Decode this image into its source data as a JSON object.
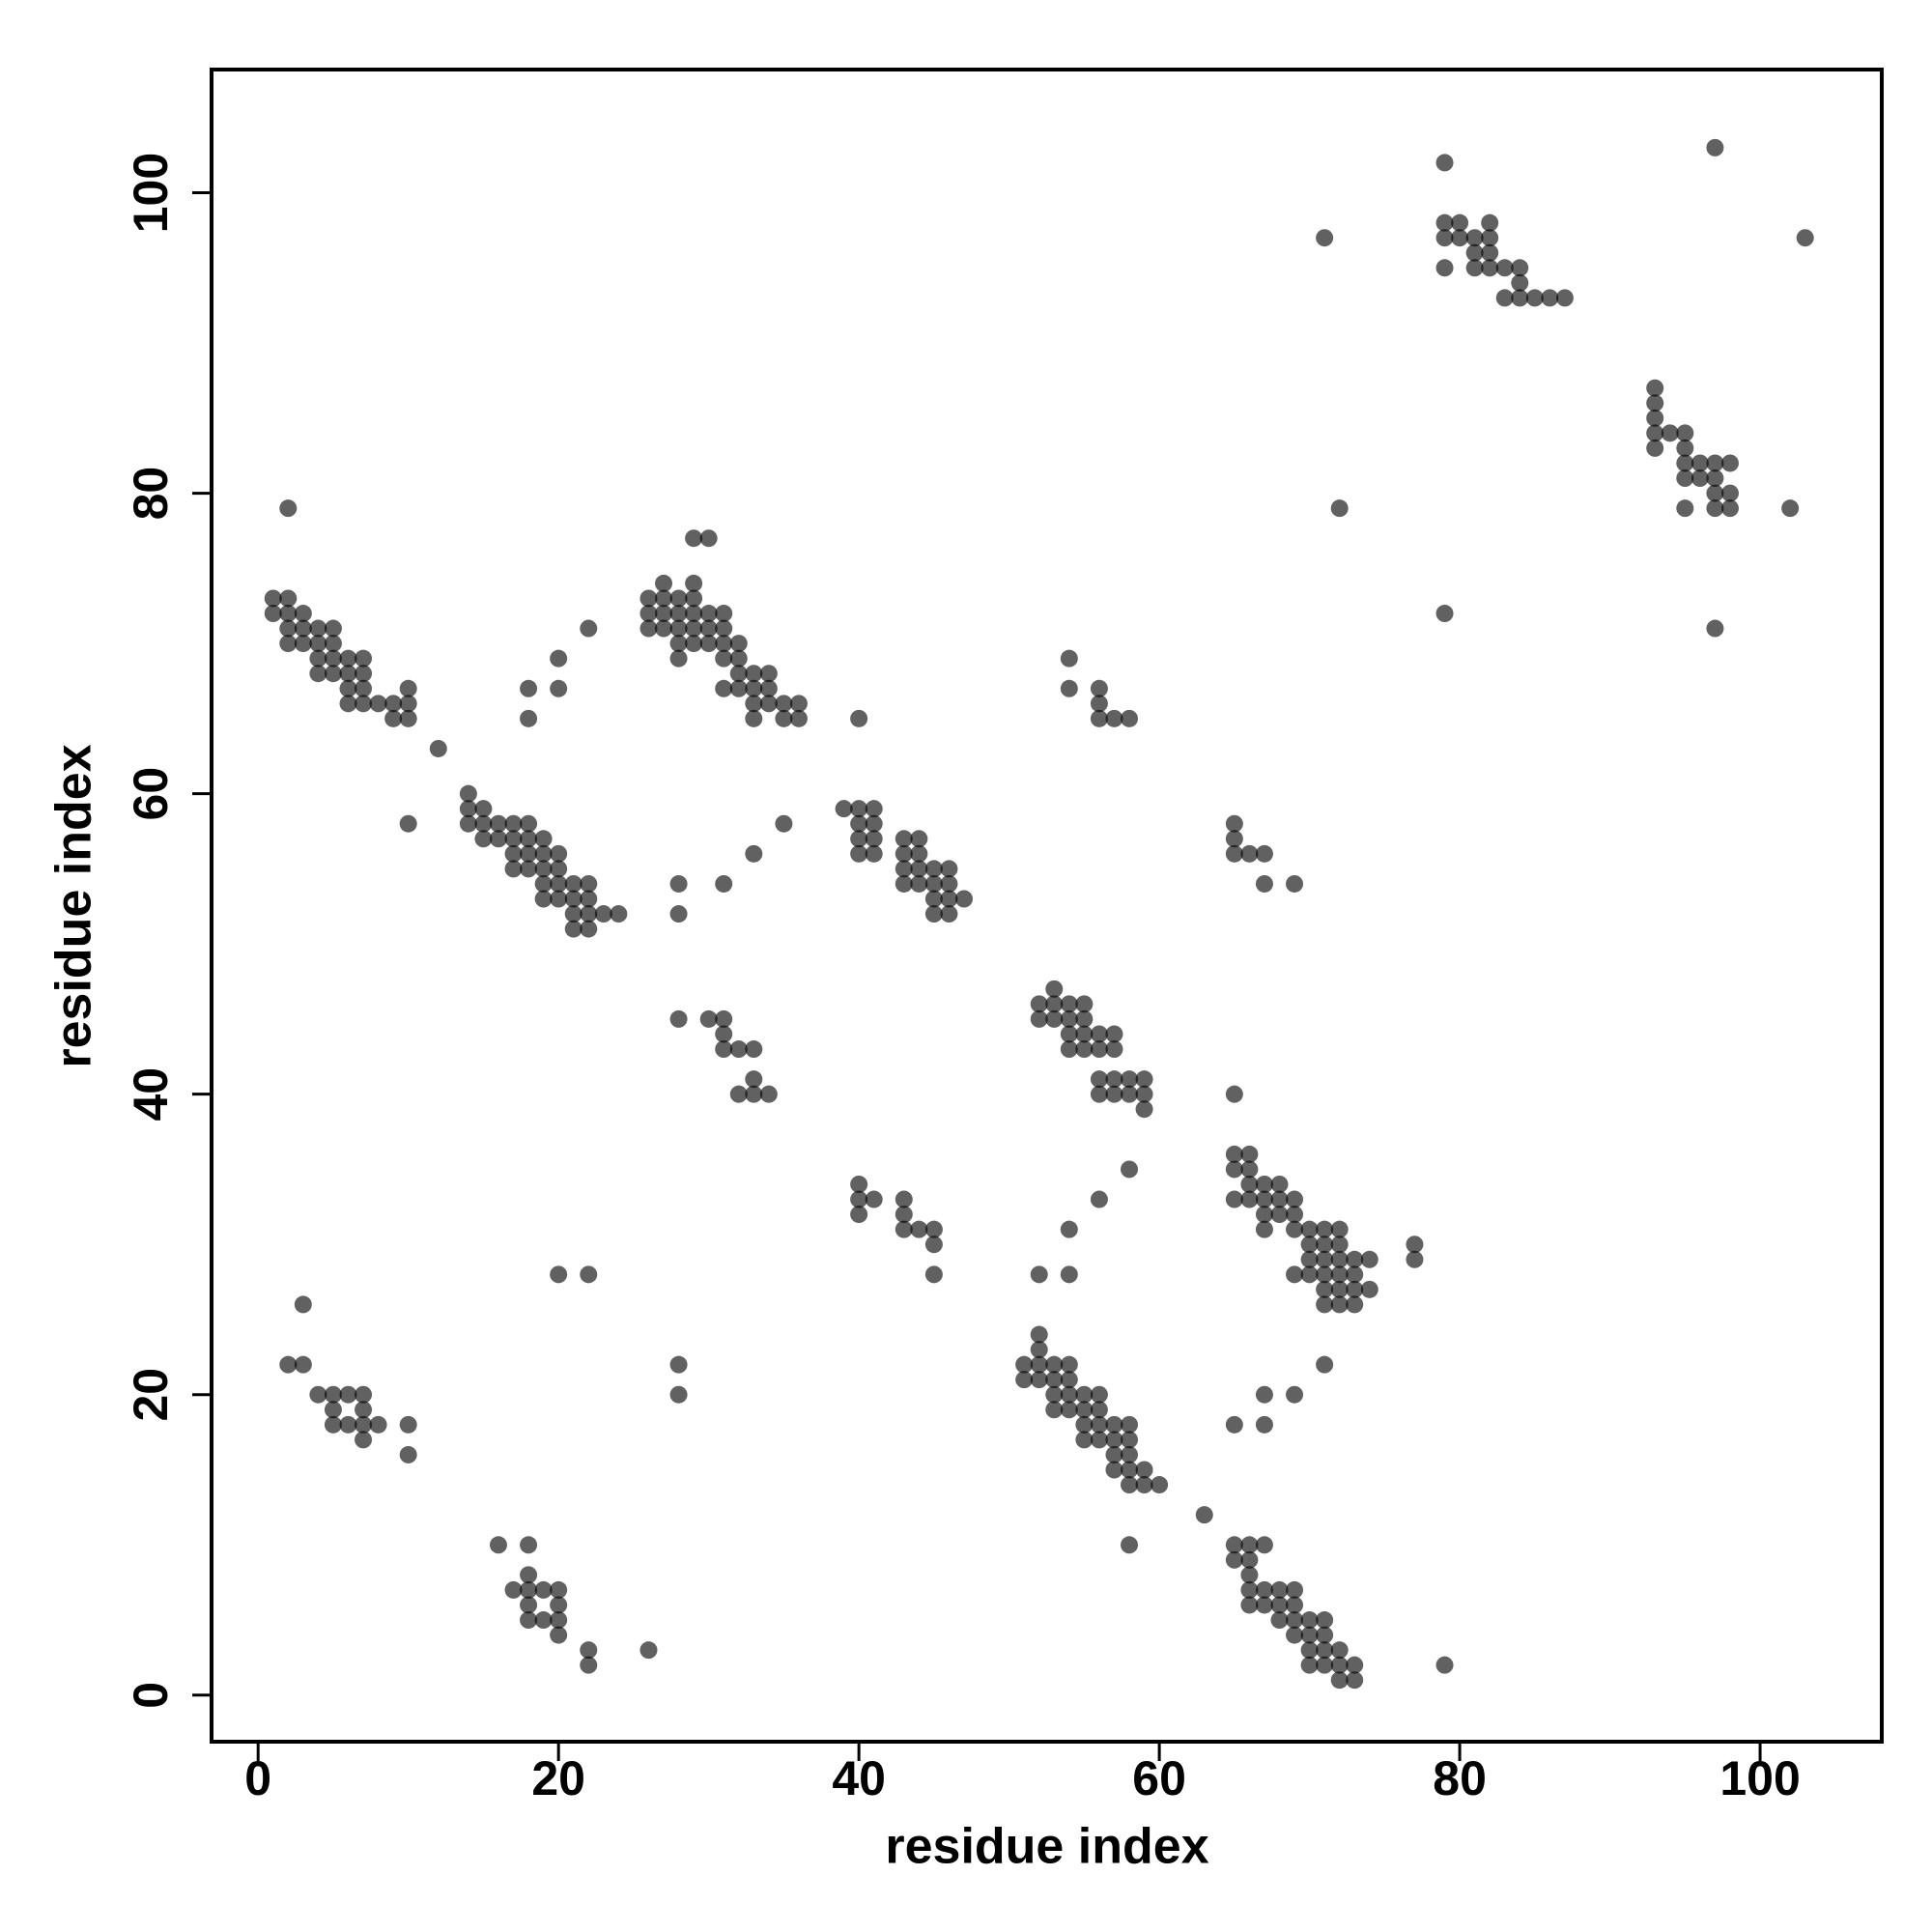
{
  "chart_data": {
    "type": "scatter",
    "xlabel": "residue index",
    "ylabel": "residue index",
    "xlim": [
      -3.1,
      108.1
    ],
    "ylim": [
      -3.1,
      108.2
    ],
    "xticks": [
      0,
      20,
      40,
      60,
      80,
      100
    ],
    "yticks": [
      0,
      20,
      40,
      60,
      80,
      100
    ],
    "color": "#000000",
    "alpha": 0.62,
    "x": [
      1,
      1,
      2,
      2,
      2,
      2,
      3,
      3,
      3,
      4,
      4,
      4,
      4,
      5,
      5,
      5,
      5,
      6,
      6,
      6,
      6,
      7,
      7,
      7,
      7,
      8,
      9,
      9,
      10,
      10,
      10,
      2,
      12,
      10,
      14,
      14,
      14,
      15,
      15,
      15,
      16,
      16,
      17,
      17,
      17,
      17,
      18,
      18,
      18,
      18,
      19,
      19,
      19,
      19,
      19,
      20,
      20,
      20,
      20,
      21,
      21,
      21,
      21,
      22,
      22,
      22,
      22,
      23,
      24,
      18,
      18,
      20,
      20,
      22,
      28,
      28,
      31,
      33,
      35,
      40,
      26,
      26,
      26,
      27,
      27,
      27,
      27,
      28,
      28,
      28,
      28,
      28,
      29,
      29,
      29,
      29,
      29,
      29,
      30,
      30,
      30,
      30,
      31,
      31,
      31,
      31,
      31,
      32,
      32,
      32,
      32,
      33,
      33,
      33,
      33,
      34,
      34,
      34,
      35,
      35,
      36,
      36,
      39,
      40,
      40,
      40,
      40,
      41,
      41,
      41,
      41,
      43,
      43,
      43,
      43,
      44,
      44,
      44,
      44,
      45,
      45,
      45,
      45,
      46,
      46,
      46,
      46,
      47,
      28,
      30,
      31,
      31,
      31,
      32,
      33,
      32,
      33,
      33,
      34,
      40,
      40,
      40,
      41,
      43,
      43,
      43,
      44,
      45,
      45,
      45,
      20,
      22,
      28,
      28,
      2,
      3,
      3,
      4,
      5,
      5,
      5,
      6,
      6,
      7,
      7,
      7,
      7,
      8,
      10,
      10,
      16,
      17,
      18,
      18,
      18,
      18,
      18,
      19,
      19,
      20,
      20,
      20,
      20,
      22,
      22,
      26,
      51,
      51,
      52,
      52,
      52,
      52,
      53,
      53,
      53,
      53,
      54,
      54,
      54,
      54,
      55,
      55,
      55,
      55,
      56,
      56,
      56,
      56,
      57,
      57,
      57,
      57,
      58,
      58,
      58,
      58,
      58,
      59,
      59,
      60,
      63,
      58,
      52,
      52,
      53,
      53,
      53,
      54,
      54,
      54,
      54,
      55,
      55,
      55,
      55,
      56,
      56,
      56,
      56,
      57,
      57,
      57,
      57,
      58,
      58,
      59,
      59,
      59,
      54,
      54,
      56,
      56,
      56,
      57,
      58,
      65,
      65,
      65,
      66,
      67,
      67,
      69,
      52,
      54,
      54,
      56,
      58,
      65,
      65,
      65,
      65,
      66,
      66,
      66,
      66,
      67,
      67,
      67,
      67,
      68,
      68,
      68,
      69,
      69,
      69,
      69,
      70,
      70,
      70,
      70,
      71,
      71,
      71,
      71,
      71,
      71,
      72,
      72,
      72,
      72,
      72,
      72,
      73,
      73,
      73,
      73,
      74,
      74,
      77,
      77,
      65,
      67,
      67,
      69,
      71,
      65,
      65,
      66,
      66,
      66,
      66,
      66,
      67,
      67,
      67,
      68,
      68,
      68,
      69,
      69,
      69,
      69,
      70,
      70,
      70,
      70,
      71,
      71,
      71,
      71,
      72,
      72,
      72,
      73,
      73,
      79,
      71,
      72,
      79,
      79,
      79,
      79,
      79,
      80,
      80,
      81,
      81,
      81,
      82,
      82,
      82,
      82,
      83,
      83,
      84,
      84,
      84,
      85,
      86,
      87,
      97,
      103,
      93,
      93,
      93,
      93,
      93,
      94,
      95,
      95,
      95,
      95,
      95,
      96,
      96,
      97,
      97,
      97,
      97,
      98,
      98,
      98,
      102,
      97
    ],
    "values": [
      73,
      72,
      73,
      72,
      71,
      70,
      72,
      71,
      70,
      71,
      70,
      69,
      68,
      71,
      70,
      69,
      68,
      69,
      68,
      67,
      66,
      69,
      68,
      67,
      66,
      66,
      66,
      65,
      67,
      66,
      65,
      79,
      63,
      58,
      60,
      59,
      58,
      59,
      58,
      57,
      58,
      57,
      58,
      57,
      56,
      55,
      58,
      57,
      56,
      55,
      57,
      56,
      55,
      54,
      53,
      56,
      55,
      54,
      53,
      54,
      53,
      52,
      51,
      54,
      53,
      52,
      51,
      52,
      52,
      67,
      65,
      69,
      67,
      71,
      54,
      52,
      54,
      56,
      58,
      65,
      73,
      72,
      71,
      74,
      73,
      72,
      71,
      73,
      72,
      71,
      70,
      69,
      77,
      74,
      73,
      72,
      71,
      70,
      77,
      72,
      71,
      70,
      72,
      71,
      70,
      69,
      67,
      70,
      69,
      68,
      67,
      68,
      67,
      66,
      65,
      68,
      67,
      66,
      66,
      65,
      66,
      65,
      59,
      59,
      58,
      57,
      56,
      59,
      58,
      57,
      56,
      57,
      56,
      55,
      54,
      57,
      56,
      55,
      54,
      55,
      54,
      53,
      52,
      55,
      54,
      53,
      52,
      53,
      45,
      45,
      45,
      44,
      43,
      43,
      43,
      40,
      41,
      40,
      40,
      34,
      33,
      32,
      33,
      33,
      32,
      31,
      31,
      31,
      30,
      28,
      28,
      28,
      22,
      20,
      22,
      26,
      22,
      20,
      20,
      19,
      18,
      20,
      18,
      20,
      19,
      18,
      17,
      18,
      18,
      16,
      10,
      7,
      10,
      8,
      7,
      6,
      5,
      7,
      5,
      7,
      6,
      5,
      4,
      3,
      2,
      3,
      22,
      21,
      24,
      23,
      22,
      21,
      22,
      21,
      20,
      19,
      22,
      21,
      20,
      19,
      20,
      19,
      18,
      17,
      20,
      19,
      18,
      17,
      18,
      17,
      16,
      15,
      18,
      17,
      16,
      15,
      14,
      15,
      14,
      14,
      12,
      10,
      46,
      45,
      47,
      46,
      45,
      46,
      45,
      44,
      43,
      46,
      45,
      44,
      43,
      44,
      43,
      41,
      40,
      44,
      43,
      41,
      40,
      41,
      40,
      41,
      40,
      39,
      69,
      67,
      67,
      66,
      65,
      65,
      65,
      58,
      57,
      56,
      56,
      56,
      54,
      54,
      28,
      31,
      28,
      33,
      35,
      40,
      36,
      35,
      33,
      36,
      35,
      34,
      33,
      34,
      33,
      32,
      31,
      34,
      33,
      32,
      33,
      32,
      31,
      28,
      31,
      30,
      29,
      28,
      31,
      30,
      29,
      28,
      27,
      26,
      31,
      30,
      29,
      28,
      27,
      26,
      29,
      28,
      27,
      26,
      29,
      27,
      30,
      29,
      18,
      20,
      18,
      20,
      22,
      10,
      9,
      10,
      9,
      8,
      7,
      6,
      10,
      7,
      6,
      7,
      6,
      5,
      7,
      6,
      5,
      4,
      5,
      4,
      3,
      2,
      5,
      4,
      3,
      2,
      3,
      2,
      1,
      2,
      1,
      2,
      97,
      79,
      72,
      102,
      98,
      97,
      95,
      98,
      97,
      97,
      96,
      95,
      98,
      97,
      96,
      95,
      95,
      93,
      95,
      94,
      93,
      93,
      93,
      93,
      103,
      97,
      87,
      86,
      85,
      84,
      83,
      84,
      84,
      83,
      82,
      81,
      79,
      82,
      81,
      82,
      81,
      80,
      79,
      82,
      80,
      79,
      79,
      71
    ]
  }
}
